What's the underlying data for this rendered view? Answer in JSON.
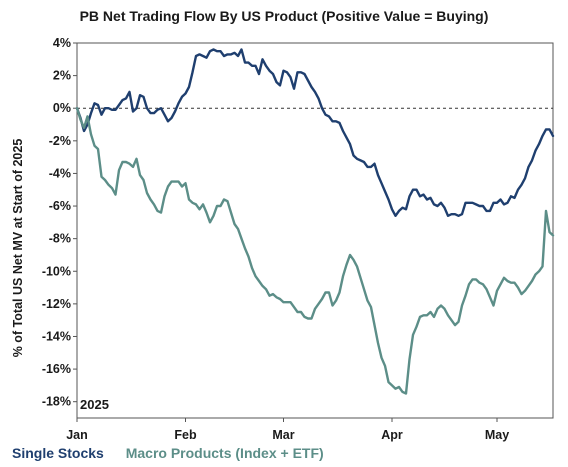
{
  "chart_data": {
    "type": "line",
    "title": "PB Net Trading Flow By US Product (Positive Value = Buying)",
    "ylabel": "% of Total US Net MV at Start of 2025",
    "annotation": "2025",
    "ylim": [
      -19,
      4
    ],
    "xlim": [
      0,
      136
    ],
    "yticks": [
      4,
      2,
      0,
      -2,
      -4,
      -6,
      -8,
      -10,
      -12,
      -14,
      -16,
      -18
    ],
    "ytick_labels": [
      "4%",
      "2%",
      "0%",
      "-2%",
      "-4%",
      "-6%",
      "-8%",
      "-10%",
      "-12%",
      "-14%",
      "-16%",
      "-18%"
    ],
    "xticks": [
      {
        "label": "Jan",
        "day": 0
      },
      {
        "label": "Feb",
        "day": 31
      },
      {
        "label": "Mar",
        "day": 59
      },
      {
        "label": "Apr",
        "day": 90
      },
      {
        "label": "May",
        "day": 120
      }
    ],
    "reference_line": 0,
    "legend_position": "bottom-left",
    "series": [
      {
        "name": "Single Stocks",
        "color": "#1f3f6f",
        "x": [
          0,
          1,
          2,
          3,
          4,
          5,
          6,
          7,
          8,
          9,
          10,
          11,
          12,
          13,
          14,
          15,
          16,
          17,
          18,
          19,
          20,
          21,
          22,
          23,
          24,
          25,
          26,
          27,
          28,
          29,
          30,
          31,
          32,
          33,
          34,
          35,
          36,
          37,
          38,
          39,
          40,
          41,
          42,
          43,
          44,
          45,
          46,
          47,
          48,
          49,
          50,
          51,
          52,
          53,
          54,
          55,
          56,
          57,
          58,
          59,
          60,
          61,
          62,
          63,
          64,
          65,
          66,
          67,
          68,
          69,
          70,
          71,
          72,
          73,
          74,
          75,
          76,
          77,
          78,
          79,
          80,
          81,
          82,
          83,
          84,
          85,
          86,
          87,
          88,
          89,
          90,
          91,
          92,
          93,
          94,
          95,
          96,
          97,
          98,
          99,
          100,
          101,
          102,
          103,
          104,
          105,
          106,
          107,
          108,
          109,
          110,
          111,
          112,
          113,
          114,
          115,
          116,
          117,
          118,
          119,
          120,
          121,
          122,
          123,
          124,
          125,
          126,
          127,
          128,
          129,
          130,
          131,
          132,
          133,
          134,
          135,
          136
        ],
        "values": [
          0.0,
          -0.6,
          -1.4,
          -1.0,
          -0.3,
          0.3,
          0.2,
          -0.4,
          0.0,
          0.0,
          -0.1,
          -0.1,
          0.2,
          0.5,
          0.6,
          1.0,
          -0.2,
          0.0,
          0.8,
          0.7,
          0.0,
          -0.3,
          -0.3,
          -0.1,
          0.0,
          -0.4,
          -0.8,
          -0.6,
          -0.2,
          0.3,
          0.7,
          0.9,
          1.3,
          2.2,
          3.2,
          3.3,
          3.2,
          3.1,
          3.5,
          3.6,
          3.5,
          3.5,
          3.2,
          3.3,
          3.3,
          3.4,
          3.2,
          3.6,
          2.8,
          2.8,
          2.6,
          2.6,
          2.1,
          3.0,
          2.6,
          2.3,
          2.1,
          1.6,
          1.4,
          2.3,
          2.2,
          1.9,
          1.2,
          2.2,
          2.2,
          2.1,
          1.7,
          1.3,
          1.0,
          0.6,
          0.0,
          -0.4,
          -0.5,
          -0.8,
          -0.8,
          -0.9,
          -1.4,
          -1.8,
          -2.2,
          -2.9,
          -3.1,
          -3.2,
          -3.3,
          -3.6,
          -3.6,
          -3.4,
          -4.1,
          -4.6,
          -5.1,
          -5.6,
          -6.2,
          -6.6,
          -6.3,
          -6.1,
          -6.2,
          -5.4,
          -5.0,
          -5.0,
          -5.4,
          -5.3,
          -5.6,
          -5.5,
          -5.9,
          -6.0,
          -5.8,
          -6.1,
          -6.6,
          -6.5,
          -6.5,
          -6.6,
          -6.5,
          -5.8,
          -5.8,
          -5.8,
          -5.9,
          -6.0,
          -6.0,
          -6.3,
          -6.3,
          -5.8,
          -5.8,
          -5.6,
          -5.9,
          -5.8,
          -5.4,
          -5.5,
          -5.0,
          -4.7,
          -4.3,
          -3.6,
          -3.2,
          -2.6,
          -2.2,
          -1.7,
          -1.3,
          -1.3,
          -1.7
        ]
      },
      {
        "name": "Macro Products (Index + ETF)",
        "color": "#5c8e88",
        "x": [
          0,
          1,
          2,
          3,
          4,
          5,
          6,
          7,
          8,
          9,
          10,
          11,
          12,
          13,
          14,
          15,
          16,
          17,
          18,
          19,
          20,
          21,
          22,
          23,
          24,
          25,
          26,
          27,
          28,
          29,
          30,
          31,
          32,
          33,
          34,
          35,
          36,
          37,
          38,
          39,
          40,
          41,
          42,
          43,
          44,
          45,
          46,
          47,
          48,
          49,
          50,
          51,
          52,
          53,
          54,
          55,
          56,
          57,
          58,
          59,
          60,
          61,
          62,
          63,
          64,
          65,
          66,
          67,
          68,
          69,
          70,
          71,
          72,
          73,
          74,
          75,
          76,
          77,
          78,
          79,
          80,
          81,
          82,
          83,
          84,
          85,
          86,
          87,
          88,
          89,
          90,
          91,
          92,
          93,
          94,
          95,
          96,
          97,
          98,
          99,
          100,
          101,
          102,
          103,
          104,
          105,
          106,
          107,
          108,
          109,
          110,
          111,
          112,
          113,
          114,
          115,
          116,
          117,
          118,
          119,
          120,
          121,
          122,
          123,
          124,
          125,
          126,
          127,
          128,
          129,
          130,
          131,
          132,
          133,
          134,
          135,
          136
        ],
        "values": [
          0.0,
          -0.7,
          -1.2,
          -0.5,
          -1.6,
          -2.3,
          -2.5,
          -4.2,
          -4.4,
          -4.7,
          -4.9,
          -5.3,
          -3.8,
          -3.3,
          -3.3,
          -3.4,
          -3.6,
          -3.1,
          -4.1,
          -4.4,
          -5.2,
          -5.6,
          -5.9,
          -6.3,
          -6.4,
          -5.4,
          -4.8,
          -4.5,
          -4.5,
          -4.5,
          -4.8,
          -4.6,
          -5.6,
          -5.8,
          -5.9,
          -6.2,
          -5.9,
          -6.4,
          -7.0,
          -6.6,
          -6.0,
          -6.0,
          -5.6,
          -5.7,
          -6.4,
          -7.1,
          -7.4,
          -8.0,
          -8.6,
          -9.1,
          -9.8,
          -10.3,
          -10.6,
          -10.9,
          -11.1,
          -11.5,
          -11.4,
          -11.6,
          -11.7,
          -11.9,
          -11.9,
          -11.9,
          -12.2,
          -12.5,
          -12.5,
          -12.8,
          -12.9,
          -12.9,
          -12.3,
          -12.0,
          -11.7,
          -11.3,
          -11.3,
          -12.1,
          -11.8,
          -11.3,
          -10.3,
          -9.6,
          -9.0,
          -9.3,
          -9.7,
          -10.4,
          -11.1,
          -11.8,
          -12.2,
          -13.3,
          -14.4,
          -15.3,
          -15.8,
          -16.8,
          -17.0,
          -17.2,
          -17.1,
          -17.4,
          -17.5,
          -15.4,
          -13.9,
          -13.4,
          -12.8,
          -12.7,
          -12.7,
          -12.5,
          -12.8,
          -12.3,
          -12.1,
          -12.3,
          -12.7,
          -13.0,
          -13.3,
          -13.1,
          -12.1,
          -11.5,
          -10.8,
          -10.5,
          -10.5,
          -10.7,
          -10.8,
          -11.1,
          -11.6,
          -12.1,
          -11.2,
          -10.8,
          -10.4,
          -10.6,
          -10.7,
          -10.7,
          -11.0,
          -11.4,
          -11.2,
          -10.9,
          -10.6,
          -10.2,
          -10.0,
          -9.7,
          -6.3,
          -7.6,
          -7.8
        ]
      }
    ]
  }
}
